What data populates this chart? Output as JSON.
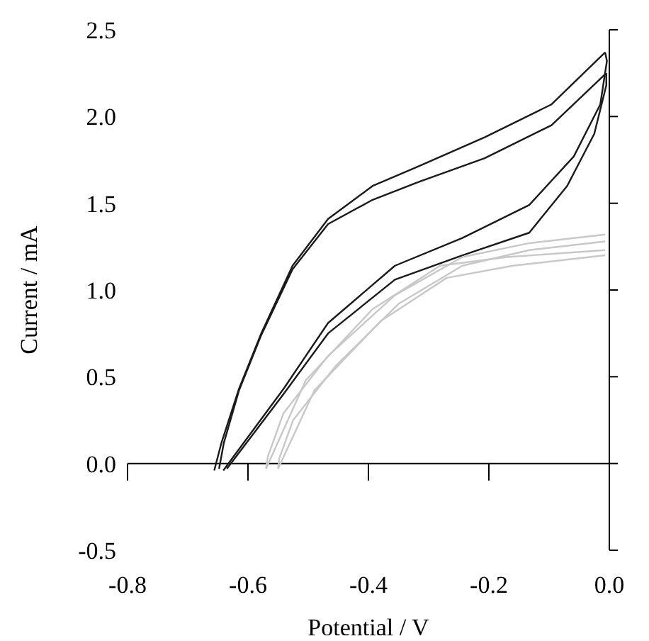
{
  "chart_data": {
    "type": "line",
    "xlabel": "Potential / V",
    "ylabel": "Current / mA",
    "xlim": [
      -0.8,
      0.0
    ],
    "xticks": [
      {
        "value": -0.8,
        "label": "-0.8"
      },
      {
        "value": -0.6,
        "label": "-0.6"
      },
      {
        "value": -0.4,
        "label": "-0.4"
      },
      {
        "value": -0.2,
        "label": "-0.2"
      },
      {
        "value": 0,
        "label": "0.0"
      }
    ],
    "ylim": [
      -0.5,
      2.5
    ],
    "yticks": [
      {
        "value": -0.5,
        "label": "-0.5"
      },
      {
        "value": 0,
        "label": "0.0"
      },
      {
        "value": 0.5,
        "label": "0.5"
      },
      {
        "value": 1,
        "label": "1.0"
      },
      {
        "value": 1.5,
        "label": "1.5"
      },
      {
        "value": 2,
        "label": "2.0"
      },
      {
        "value": 2.5,
        "label": "2.5"
      }
    ],
    "marker": "none",
    "line_style": "solid",
    "ref_lines": [
      {
        "axis": "y",
        "value": 0,
        "color": "#000000"
      }
    ],
    "series": [
      {
        "color": "#1a1a1a",
        "x": [
          -0.641,
          -0.541,
          -0.467,
          -0.356,
          -0.244,
          -0.133,
          -0.059,
          -0.015,
          -0.004,
          -0.007
        ],
        "values": [
          -0.04,
          0.43,
          0.81,
          1.14,
          1.3,
          1.49,
          1.77,
          2.07,
          2.32,
          2.37
        ]
      },
      {
        "color": "#1a1a1a",
        "x": [
          -0.656,
          -0.644,
          -0.615,
          -0.578,
          -0.526,
          -0.467,
          -0.393,
          -0.319,
          -0.207,
          -0.096,
          -0.007
        ],
        "values": [
          -0.04,
          0.12,
          0.43,
          0.75,
          1.14,
          1.41,
          1.6,
          1.71,
          1.88,
          2.07,
          2.37
        ]
      },
      {
        "color": "#1a1a1a",
        "x": [
          -0.635,
          -0.541,
          -0.467,
          -0.356,
          -0.244,
          -0.133,
          -0.07,
          -0.025,
          -0.005,
          -0.005
        ],
        "values": [
          -0.03,
          0.4,
          0.75,
          1.06,
          1.2,
          1.33,
          1.6,
          1.9,
          2.18,
          2.25
        ]
      },
      {
        "color": "#1a1a1a",
        "x": [
          -0.648,
          -0.64,
          -0.615,
          -0.578,
          -0.526,
          -0.467,
          -0.393,
          -0.319,
          -0.207,
          -0.096,
          -0.005
        ],
        "values": [
          -0.03,
          0.12,
          0.42,
          0.74,
          1.12,
          1.38,
          1.52,
          1.62,
          1.76,
          1.95,
          2.25
        ]
      },
      {
        "color": "#c8c8c8",
        "x": [
          -0.57,
          -0.504,
          -0.393,
          -0.281,
          -0.17,
          -0.007
        ],
        "values": [
          -0.03,
          0.48,
          0.89,
          1.14,
          1.19,
          1.23
        ]
      },
      {
        "color": "#c8c8c8",
        "x": [
          -0.57,
          -0.567,
          -0.541,
          -0.467,
          -0.356,
          -0.244,
          -0.133,
          -0.007
        ],
        "values": [
          -0.03,
          0.04,
          0.29,
          0.62,
          0.97,
          1.19,
          1.27,
          1.32
        ]
      },
      {
        "color": "#c8c8c8",
        "x": [
          -0.55,
          -0.49,
          -0.38,
          -0.27,
          -0.16,
          -0.007
        ],
        "values": [
          -0.03,
          0.42,
          0.82,
          1.07,
          1.14,
          1.2
        ]
      },
      {
        "color": "#c8c8c8",
        "x": [
          -0.55,
          -0.548,
          -0.525,
          -0.455,
          -0.35,
          -0.244,
          -0.133,
          -0.007
        ],
        "values": [
          -0.03,
          0.03,
          0.25,
          0.56,
          0.92,
          1.14,
          1.23,
          1.28
        ]
      }
    ]
  }
}
